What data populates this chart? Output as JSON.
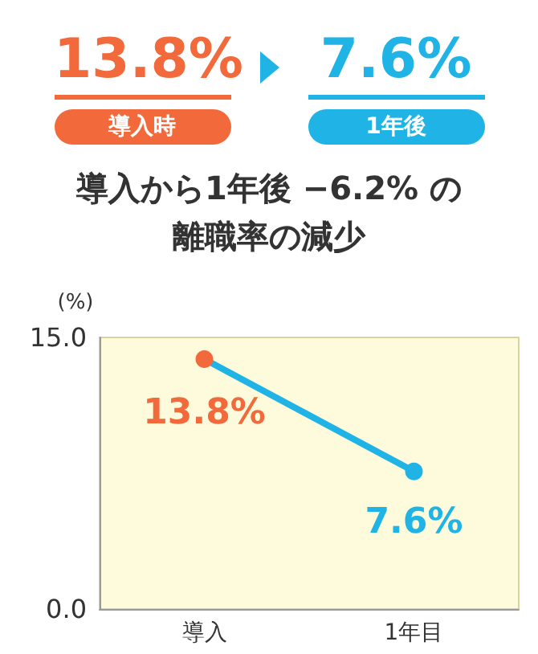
{
  "chart_data": {
    "type": "line",
    "title": "導入から1年後 −6.2% の離職率の減少",
    "ylabel": "(%)",
    "annotations": [
      "13.8%",
      "導入時",
      "7.6%",
      "1年後"
    ],
    "categories": [
      "導入",
      "1年目"
    ],
    "series": [
      {
        "color": "#1fb3e6",
        "colors": [
          "#f26a3b",
          "#1fb3e6"
        ],
        "values": [
          13.8,
          7.6
        ],
        "value_labels": [
          "13.8%",
          "7.6%"
        ]
      }
    ],
    "ylim": [
      0,
      15
    ],
    "yticks": [
      {
        "value": 0,
        "label": "0.0"
      },
      {
        "value": 15,
        "label": "15.0"
      }
    ],
    "marker": "circle",
    "line_style": "solid",
    "grid": false
  }
}
